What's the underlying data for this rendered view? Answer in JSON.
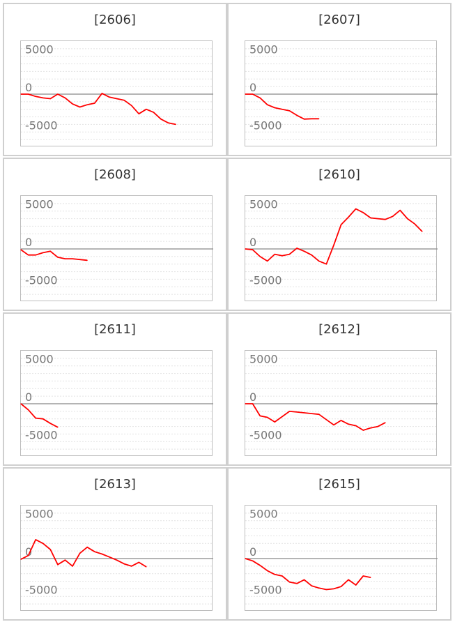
{
  "chart_data": [
    {
      "type": "line",
      "title": "[2606]",
      "y_ticks": [
        "5000",
        "0",
        "-5000"
      ],
      "ylim": [
        -7000,
        7000
      ],
      "grid": true,
      "color": "#ff0000",
      "series": [
        {
          "values": [
            0,
            0,
            -300,
            -500,
            -600,
            0,
            -500,
            -1300,
            -1700,
            -1400,
            -1200,
            100,
            -400,
            -600,
            -800,
            -1500,
            -2600,
            -2000,
            -2400,
            -3300,
            -3800,
            -4000
          ]
        }
      ]
    },
    {
      "type": "line",
      "title": "[2607]",
      "y_ticks": [
        "5000",
        "0",
        "-5000"
      ],
      "ylim": [
        -7000,
        7000
      ],
      "grid": true,
      "color": "#ff0000",
      "series": [
        {
          "values": [
            0,
            0,
            -500,
            -1400,
            -1800,
            -2000,
            -2200,
            -2800,
            -3300,
            -3250,
            -3250
          ]
        }
      ]
    },
    {
      "type": "line",
      "title": "[2608]",
      "y_ticks": [
        "5000",
        "0",
        "-5000"
      ],
      "ylim": [
        -7000,
        7000
      ],
      "grid": true,
      "color": "#ff0000",
      "series": [
        {
          "values": [
            -100,
            -800,
            -800,
            -500,
            -300,
            -1100,
            -1300,
            -1300,
            -1400,
            -1500
          ]
        }
      ]
    },
    {
      "type": "line",
      "title": "[2610]",
      "y_ticks": [
        "5000",
        "0",
        "-5000"
      ],
      "ylim": [
        -7000,
        7000
      ],
      "grid": true,
      "color": "#ff0000",
      "series": [
        {
          "values": [
            0,
            -100,
            -1000,
            -1600,
            -700,
            -900,
            -700,
            100,
            -300,
            -800,
            -1600,
            -2000,
            500,
            3200,
            4200,
            5300,
            4800,
            4100,
            4000,
            3900,
            4300,
            5100,
            4000,
            3300,
            2300
          ]
        }
      ]
    },
    {
      "type": "line",
      "title": "[2611]",
      "y_ticks": [
        "5000",
        "0",
        "-5000"
      ],
      "ylim": [
        -7000,
        7000
      ],
      "grid": true,
      "color": "#ff0000",
      "series": [
        {
          "values": [
            0,
            -800,
            -1900,
            -2000,
            -2600,
            -3100
          ]
        }
      ]
    },
    {
      "type": "line",
      "title": "[2612]",
      "y_ticks": [
        "5000",
        "0",
        "-5000"
      ],
      "ylim": [
        -7000,
        7000
      ],
      "grid": true,
      "color": "#ff0000",
      "series": [
        {
          "values": [
            0,
            0,
            -1600,
            -1800,
            -2400,
            -1700,
            -1000,
            -1100,
            -1200,
            -1300,
            -1400,
            -2100,
            -2800,
            -2200,
            -2700,
            -2900,
            -3500,
            -3200,
            -3000,
            -2500
          ]
        }
      ]
    },
    {
      "type": "line",
      "title": "[2613]",
      "y_ticks": [
        "5000",
        "0",
        "-5000"
      ],
      "ylim": [
        -7000,
        7000
      ],
      "grid": true,
      "color": "#ff0000",
      "series": [
        {
          "values": [
            -100,
            400,
            2500,
            2000,
            1200,
            -800,
            -200,
            -1000,
            700,
            1500,
            900,
            600,
            200,
            -200,
            -700,
            -1000,
            -500,
            -1100
          ]
        }
      ]
    },
    {
      "type": "line",
      "title": "[2615]",
      "y_ticks": [
        "5000",
        "0",
        "-5000"
      ],
      "ylim": [
        -7000,
        7000
      ],
      "grid": true,
      "color": "#ff0000",
      "series": [
        {
          "values": [
            0,
            -300,
            -900,
            -1600,
            -2100,
            -2300,
            -3100,
            -3300,
            -2800,
            -3600,
            -3900,
            -4100,
            -4000,
            -3700,
            -2800,
            -3500,
            -2300,
            -2500
          ]
        }
      ]
    }
  ]
}
